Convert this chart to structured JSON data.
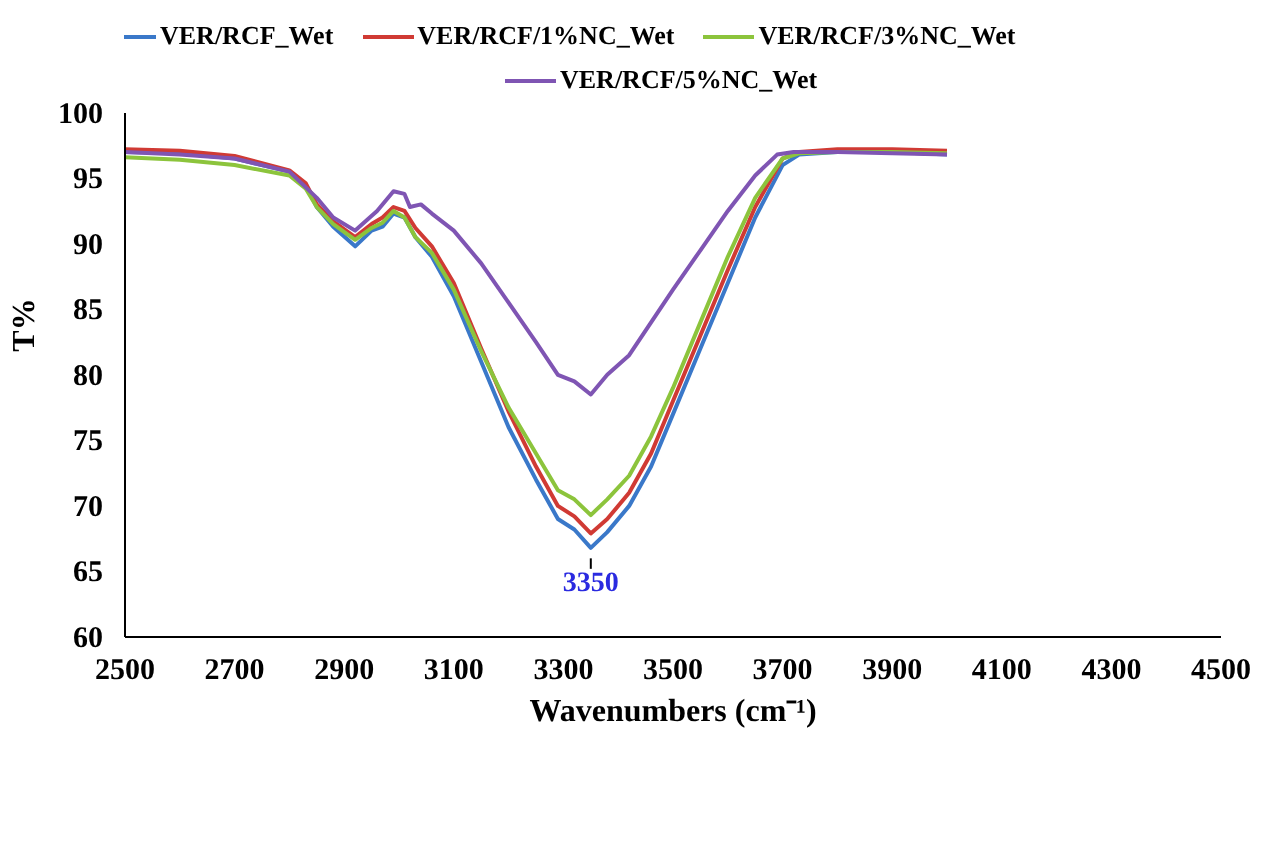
{
  "chart_data": {
    "type": "line",
    "xlabel": "Wavenumbers (cm⁻¹)",
    "ylabel": "T%",
    "xlim": [
      2500,
      4500
    ],
    "xticks": [
      2500,
      2700,
      2900,
      3100,
      3300,
      3500,
      3700,
      3900,
      4100,
      4300,
      4500
    ],
    "ylim": [
      60,
      100
    ],
    "yticks": [
      60,
      65,
      70,
      75,
      80,
      85,
      90,
      95,
      100
    ],
    "grid": false,
    "legend": "top",
    "line_style": "solid",
    "annotations": [
      {
        "text": "3350",
        "x": 3350,
        "y": 66.2
      }
    ],
    "series": [
      {
        "name": "VER/RCF_Wet",
        "color": "#3a78c9",
        "x": [
          2500,
          2600,
          2700,
          2800,
          2830,
          2850,
          2880,
          2920,
          2950,
          2970,
          2990,
          3010,
          3030,
          3060,
          3100,
          3150,
          3200,
          3250,
          3290,
          3320,
          3350,
          3380,
          3420,
          3460,
          3500,
          3550,
          3600,
          3650,
          3700,
          3730,
          3800,
          3900,
          4000
        ],
        "values": [
          97,
          96.9,
          96.5,
          95.5,
          94.5,
          92.8,
          91.3,
          89.8,
          91,
          91.3,
          92.3,
          92,
          90.5,
          89,
          86,
          81,
          76,
          72,
          69,
          68.2,
          66.8,
          68,
          70,
          73,
          77,
          82,
          87,
          92,
          96,
          96.8,
          97,
          97,
          96.8
        ]
      },
      {
        "name": "VER/RCF/1%NC_Wet",
        "color": "#d03a34",
        "x": [
          2500,
          2600,
          2700,
          2800,
          2830,
          2850,
          2880,
          2920,
          2950,
          2970,
          2990,
          3010,
          3030,
          3060,
          3100,
          3150,
          3200,
          3250,
          3290,
          3320,
          3350,
          3380,
          3420,
          3460,
          3500,
          3550,
          3600,
          3650,
          3700,
          3730,
          3800,
          3900,
          4000
        ],
        "values": [
          97.2,
          97.1,
          96.7,
          95.6,
          94.6,
          93,
          91.7,
          90.5,
          91.5,
          92,
          92.8,
          92.5,
          91.2,
          89.8,
          87,
          82,
          77.2,
          73,
          70,
          69.2,
          67.9,
          69,
          71,
          74,
          78,
          83,
          88,
          92.8,
          96.5,
          97,
          97.2,
          97.2,
          97.1
        ]
      },
      {
        "name": "VER/RCF/3%NC_Wet",
        "color": "#8cc43c",
        "x": [
          2500,
          2600,
          2700,
          2800,
          2830,
          2850,
          2880,
          2920,
          2950,
          2970,
          2990,
          3010,
          3030,
          3060,
          3100,
          3150,
          3200,
          3250,
          3290,
          3320,
          3350,
          3380,
          3420,
          3460,
          3500,
          3550,
          3600,
          3650,
          3700,
          3730,
          3800,
          3900,
          4000
        ],
        "values": [
          96.6,
          96.4,
          96,
          95.2,
          94.2,
          92.8,
          91.5,
          90.3,
          91.2,
          91.6,
          92.5,
          92,
          90.5,
          89.3,
          86.5,
          81.8,
          77.5,
          74,
          71.2,
          70.5,
          69.3,
          70.5,
          72.3,
          75.3,
          79,
          84,
          89,
          93.5,
          96.5,
          96.9,
          97,
          97,
          96.9
        ]
      },
      {
        "name": "VER/RCF/5%NC_Wet",
        "color": "#7f55b3",
        "x": [
          2500,
          2600,
          2700,
          2800,
          2850,
          2880,
          2920,
          2960,
          2990,
          3010,
          3020,
          3040,
          3060,
          3100,
          3150,
          3200,
          3250,
          3290,
          3320,
          3350,
          3380,
          3420,
          3460,
          3500,
          3550,
          3600,
          3650,
          3690,
          3720,
          3800,
          3900,
          4000
        ],
        "values": [
          97,
          96.8,
          96.5,
          95.5,
          93.5,
          92,
          91,
          92.5,
          94,
          93.8,
          92.8,
          93,
          92.3,
          91,
          88.5,
          85.5,
          82.5,
          80,
          79.5,
          78.5,
          80,
          81.5,
          84,
          86.5,
          89.5,
          92.5,
          95.2,
          96.8,
          97,
          97,
          96.9,
          96.8
        ]
      }
    ]
  }
}
